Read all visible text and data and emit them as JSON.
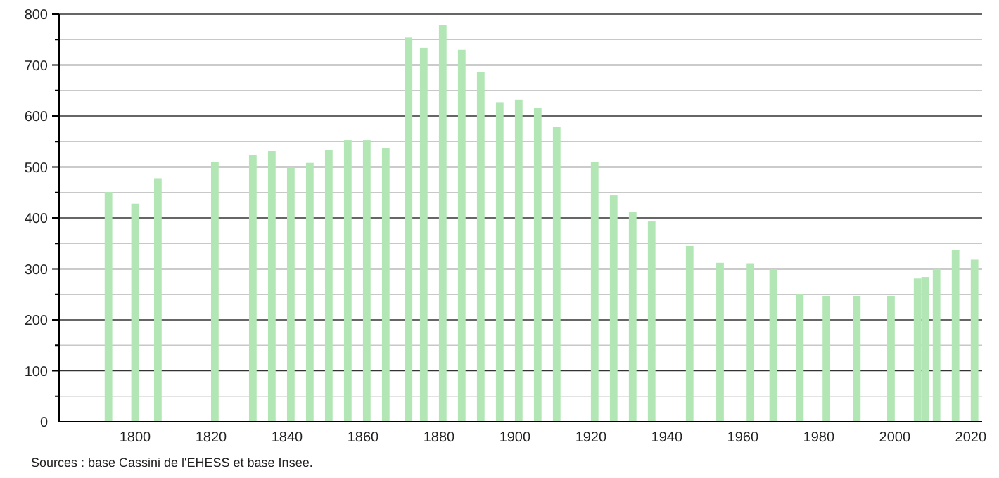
{
  "chart_data": {
    "type": "bar",
    "x": [
      1793,
      1800,
      1806,
      1821,
      1831,
      1836,
      1841,
      1846,
      1851,
      1856,
      1861,
      1866,
      1872,
      1876,
      1881,
      1886,
      1891,
      1896,
      1901,
      1906,
      1911,
      1921,
      1926,
      1931,
      1936,
      1946,
      1954,
      1962,
      1968,
      1975,
      1982,
      1990,
      1999,
      2006,
      2008,
      2011,
      2016,
      2021
    ],
    "values": [
      451,
      428,
      478,
      510,
      524,
      531,
      499,
      508,
      533,
      553,
      553,
      537,
      754,
      734,
      779,
      730,
      686,
      627,
      632,
      616,
      579,
      509,
      444,
      411,
      393,
      345,
      312,
      311,
      300,
      251,
      247,
      247,
      247,
      281,
      284,
      301,
      337,
      318
    ],
    "color": "#b3e6b5",
    "xlim": [
      1780,
      2023
    ],
    "xticks": [
      1800,
      1820,
      1840,
      1860,
      1880,
      1900,
      1920,
      1940,
      1960,
      1980,
      2000,
      2020
    ],
    "ylim": [
      0,
      800
    ],
    "yticks": [
      0,
      {
        "value": 50,
        "label": null
      },
      100,
      {
        "value": 150,
        "label": null
      },
      200,
      {
        "value": 250,
        "label": null
      },
      300,
      {
        "value": 350,
        "label": null
      },
      400,
      {
        "value": 450,
        "label": null
      },
      500,
      {
        "value": 550,
        "label": null
      },
      600,
      {
        "value": 650,
        "label": null
      },
      700,
      {
        "value": 750,
        "label": null
      },
      800
    ],
    "grid": true,
    "annotations": [
      "Sources : base Cassini de l'EHESS et base Insee."
    ]
  }
}
